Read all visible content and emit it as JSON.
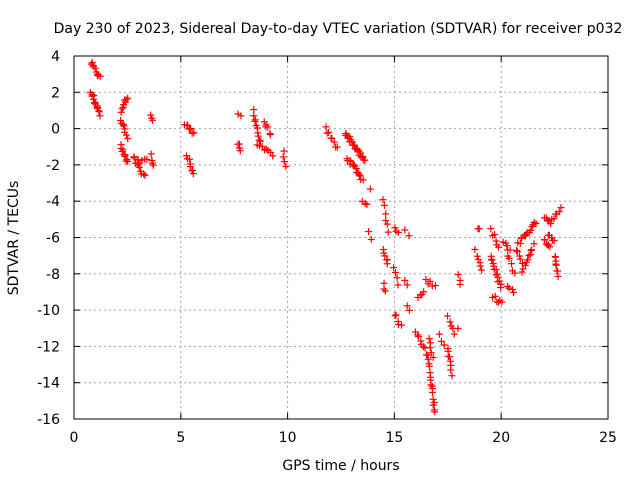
{
  "chart_data": {
    "type": "scatter",
    "title": "Day 230 of 2023, Sidereal Day-to-day VTEC variation (SDTVAR) for receiver p032",
    "xlabel": "GPS time / hours",
    "ylabel": "SDTVAR / TECUs",
    "xlim": [
      0,
      25
    ],
    "ylim": [
      -16,
      4
    ],
    "xticks": [
      0,
      5,
      10,
      15,
      20,
      25
    ],
    "xtick_labels": [
      "0",
      "5",
      "10",
      "15",
      "20",
      "25"
    ],
    "yticks": [
      4,
      2,
      0,
      -2,
      -4,
      -6,
      -8,
      -10,
      -12,
      -14,
      -16
    ],
    "ytick_labels": [
      "4",
      "2",
      "0",
      "-2",
      "-4",
      "-6",
      "-8",
      "-10",
      "-12",
      "-14",
      "-16"
    ],
    "grid": true,
    "marker": "+",
    "color": "#ff0000",
    "segments": [
      {
        "x0": 0.8,
        "x1": 1.2,
        "y0": 3.6,
        "y1": 2.8,
        "n": 10
      },
      {
        "x0": 0.8,
        "x1": 1.2,
        "y0": 2.0,
        "y1": 0.8,
        "n": 14
      },
      {
        "x0": 2.2,
        "x1": 2.5,
        "y0": 1.0,
        "y1": 1.8,
        "n": 8
      },
      {
        "x0": 2.2,
        "x1": 2.5,
        "y0": 0.5,
        "y1": -0.5,
        "n": 8
      },
      {
        "x0": 2.2,
        "x1": 2.5,
        "y0": -1.0,
        "y1": -1.9,
        "n": 10
      },
      {
        "x0": 2.8,
        "x1": 3.3,
        "y0": -1.6,
        "y1": -2.7,
        "n": 10
      },
      {
        "x0": 3.0,
        "x1": 3.4,
        "y0": -1.8,
        "y1": -1.7,
        "n": 5
      },
      {
        "x0": 3.6,
        "x1": 3.7,
        "y0": -1.5,
        "y1": -2.0,
        "n": 4
      },
      {
        "x0": 3.6,
        "x1": 3.7,
        "y0": 0.7,
        "y1": 0.5,
        "n": 3
      },
      {
        "x0": 5.2,
        "x1": 5.6,
        "y0": 0.2,
        "y1": -0.2,
        "n": 8
      },
      {
        "x0": 5.3,
        "x1": 5.6,
        "y0": -1.4,
        "y1": -2.6,
        "n": 8
      },
      {
        "x0": 7.7,
        "x1": 7.8,
        "y0": -0.8,
        "y1": -1.3,
        "n": 4
      },
      {
        "x0": 7.7,
        "x1": 7.8,
        "y0": 0.8,
        "y1": 0.7,
        "n": 2
      },
      {
        "x0": 8.4,
        "x1": 8.7,
        "y0": 1.0,
        "y1": -0.8,
        "n": 10
      },
      {
        "x0": 8.9,
        "x1": 9.2,
        "y0": 0.4,
        "y1": -0.3,
        "n": 6
      },
      {
        "x0": 8.6,
        "x1": 9.3,
        "y0": -1.0,
        "y1": -1.4,
        "n": 8
      },
      {
        "x0": 9.8,
        "x1": 9.9,
        "y0": -1.3,
        "y1": -2.2,
        "n": 4
      },
      {
        "x0": 11.8,
        "x1": 12.3,
        "y0": 0.0,
        "y1": -1.1,
        "n": 8
      },
      {
        "x0": 12.7,
        "x1": 13.6,
        "y0": -0.2,
        "y1": -1.8,
        "n": 24
      },
      {
        "x0": 12.8,
        "x1": 13.5,
        "y0": -1.6,
        "y1": -2.8,
        "n": 16
      },
      {
        "x0": 13.5,
        "x1": 13.7,
        "y0": -3.9,
        "y1": -4.3,
        "n": 3
      },
      {
        "x0": 13.8,
        "x1": 13.9,
        "y0": -3.4,
        "y1": -3.4,
        "n": 1
      },
      {
        "x0": 13.8,
        "x1": 13.9,
        "y0": -5.6,
        "y1": -6.0,
        "n": 2
      },
      {
        "x0": 14.5,
        "x1": 14.7,
        "y0": -4.0,
        "y1": -5.6,
        "n": 6
      },
      {
        "x0": 14.5,
        "x1": 14.7,
        "y0": -6.6,
        "y1": -7.5,
        "n": 6
      },
      {
        "x0": 14.5,
        "x1": 14.6,
        "y0": -8.5,
        "y1": -9.0,
        "n": 3
      },
      {
        "x0": 15.0,
        "x1": 15.2,
        "y0": -5.5,
        "y1": -5.8,
        "n": 3
      },
      {
        "x0": 15.0,
        "x1": 15.2,
        "y0": -7.6,
        "y1": -8.5,
        "n": 4
      },
      {
        "x0": 15.0,
        "x1": 15.3,
        "y0": -10.2,
        "y1": -10.9,
        "n": 5
      },
      {
        "x0": 15.5,
        "x1": 15.7,
        "y0": -5.7,
        "y1": -5.8,
        "n": 2
      },
      {
        "x0": 15.5,
        "x1": 15.6,
        "y0": -8.4,
        "y1": -8.6,
        "n": 2
      },
      {
        "x0": 15.6,
        "x1": 15.7,
        "y0": -9.8,
        "y1": -9.9,
        "n": 2
      },
      {
        "x0": 16.1,
        "x1": 16.4,
        "y0": -9.4,
        "y1": -9.0,
        "n": 4
      },
      {
        "x0": 16.0,
        "x1": 16.6,
        "y0": -11.2,
        "y1": -12.7,
        "n": 10
      },
      {
        "x0": 16.5,
        "x1": 16.9,
        "y0": -8.4,
        "y1": -8.6,
        "n": 5
      },
      {
        "x0": 16.6,
        "x1": 16.8,
        "y0": -11.5,
        "y1": -12.6,
        "n": 5
      },
      {
        "x0": 16.6,
        "x1": 16.9,
        "y0": -13.0,
        "y1": -15.6,
        "n": 14
      },
      {
        "x0": 17.1,
        "x1": 17.3,
        "y0": -11.4,
        "y1": -11.8,
        "n": 3
      },
      {
        "x0": 17.5,
        "x1": 17.7,
        "y0": -12.0,
        "y1": -13.6,
        "n": 8
      },
      {
        "x0": 17.5,
        "x1": 17.8,
        "y0": -10.4,
        "y1": -11.2,
        "n": 5
      },
      {
        "x0": 18.0,
        "x1": 18.1,
        "y0": -8.0,
        "y1": -8.6,
        "n": 3
      },
      {
        "x0": 17.9,
        "x1": 18.0,
        "y0": -11.1,
        "y1": -11.1,
        "n": 1
      },
      {
        "x0": 18.9,
        "x1": 19.0,
        "y0": -5.6,
        "y1": -5.6,
        "n": 2
      },
      {
        "x0": 18.8,
        "x1": 19.1,
        "y0": -6.7,
        "y1": -7.9,
        "n": 6
      },
      {
        "x0": 19.5,
        "x1": 19.9,
        "y0": -5.6,
        "y1": -6.5,
        "n": 6
      },
      {
        "x0": 19.5,
        "x1": 20.0,
        "y0": -7.0,
        "y1": -8.8,
        "n": 14
      },
      {
        "x0": 19.6,
        "x1": 20.0,
        "y0": -9.3,
        "y1": -9.6,
        "n": 6
      },
      {
        "x0": 20.1,
        "x1": 20.4,
        "y0": -6.2,
        "y1": -6.8,
        "n": 5
      },
      {
        "x0": 20.3,
        "x1": 20.6,
        "y0": -7.0,
        "y1": -8.0,
        "n": 5
      },
      {
        "x0": 20.3,
        "x1": 20.6,
        "y0": -8.7,
        "y1": -9.1,
        "n": 4
      },
      {
        "x0": 20.7,
        "x1": 21.0,
        "y0": -6.6,
        "y1": -7.4,
        "n": 5
      },
      {
        "x0": 20.8,
        "x1": 21.6,
        "y0": -6.3,
        "y1": -5.2,
        "n": 14
      },
      {
        "x0": 21.0,
        "x1": 21.5,
        "y0": -7.8,
        "y1": -6.4,
        "n": 10
      },
      {
        "x0": 22.0,
        "x1": 22.3,
        "y0": -4.9,
        "y1": -5.3,
        "n": 5
      },
      {
        "x0": 22.0,
        "x1": 22.3,
        "y0": -6.0,
        "y1": -6.6,
        "n": 6
      },
      {
        "x0": 22.4,
        "x1": 22.8,
        "y0": -5.0,
        "y1": -4.4,
        "n": 6
      },
      {
        "x0": 22.2,
        "x1": 22.5,
        "y0": -5.8,
        "y1": -6.2,
        "n": 5
      },
      {
        "x0": 22.5,
        "x1": 22.7,
        "y0": -7.0,
        "y1": -8.1,
        "n": 8
      }
    ]
  }
}
